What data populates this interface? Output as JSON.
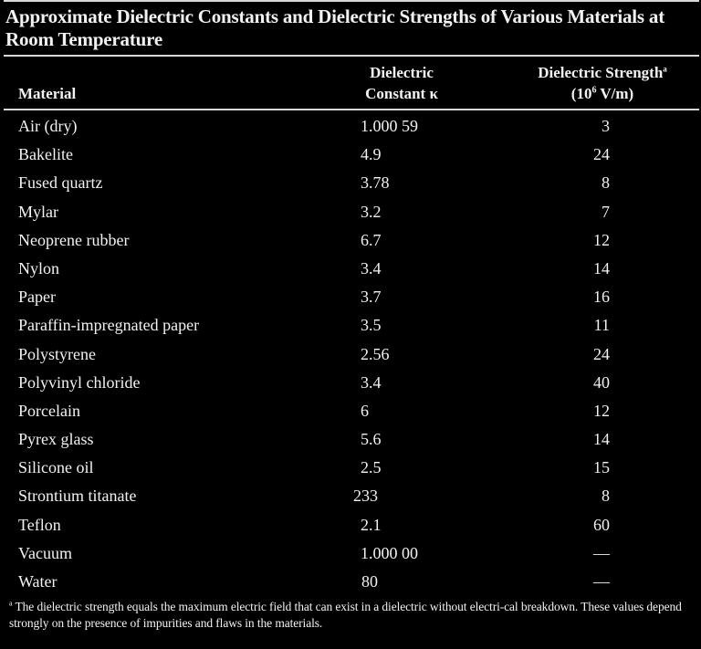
{
  "title": "Approximate Dielectric Constants and Dielectric Strengths of Various Materials at Room Temperature",
  "columns": {
    "material": "Material",
    "constant_line1": "Dielectric",
    "constant_line2": "Constant κ",
    "strength_line1": "Dielectric Strength",
    "strength_sup": "a",
    "strength_line2_pre": "(10",
    "strength_line2_exp": "6",
    "strength_line2_post": " V/m)"
  },
  "rows": [
    {
      "material": "Air (dry)",
      "constant": "1.000 59",
      "strength": "3"
    },
    {
      "material": "Bakelite",
      "constant": "4.9",
      "strength": "24"
    },
    {
      "material": "Fused quartz",
      "constant": "3.78",
      "strength": "8"
    },
    {
      "material": "Mylar",
      "constant": "3.2",
      "strength": "7"
    },
    {
      "material": "Neoprene rubber",
      "constant": "6.7",
      "strength": "12"
    },
    {
      "material": "Nylon",
      "constant": "3.4",
      "strength": "14"
    },
    {
      "material": "Paper",
      "constant": "3.7",
      "strength": "16"
    },
    {
      "material": "Paraffin-impregnated paper",
      "constant": "3.5",
      "strength": "11"
    },
    {
      "material": "Polystyrene",
      "constant": "2.56",
      "strength": "24"
    },
    {
      "material": "Polyvinyl chloride",
      "constant": "3.4",
      "strength": "40"
    },
    {
      "material": "Porcelain",
      "constant": "6",
      "strength": "12"
    },
    {
      "material": "Pyrex glass",
      "constant": "5.6",
      "strength": "14"
    },
    {
      "material": "Silicone oil",
      "constant": "2.5",
      "strength": "15"
    },
    {
      "material": "Strontium titanate",
      "constant": "233",
      "strength": "8"
    },
    {
      "material": "Teflon",
      "constant": "2.1",
      "strength": "60"
    },
    {
      "material": "Vacuum",
      "constant": "1.000 00",
      "strength": "—"
    },
    {
      "material": "Water",
      "constant": "80",
      "strength": "—"
    }
  ],
  "footnote": {
    "marker": "a",
    "text": " The dielectric strength equals the maximum electric field that can exist in a dielectric without electri-cal breakdown. These values depend strongly on the presence of impurities and flaws in the materials."
  }
}
